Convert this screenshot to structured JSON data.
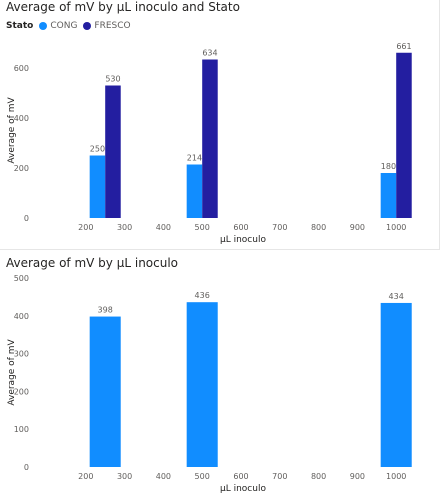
{
  "colors": {
    "cong": "#118dff",
    "fresco": "#231ea0",
    "axis_text": "#605e5c",
    "label_text": "#605e5c",
    "grid": "#e6e6e6"
  },
  "chart_data": [
    {
      "type": "bar",
      "title": "Average of mV by µL inoculo and Stato",
      "xlabel": "µL inoculo",
      "ylabel": "Average of mV",
      "legend_title": "Stato",
      "legend_placement": "top-left",
      "xlim": [
        100,
        1100
      ],
      "x_ticks": [
        200,
        300,
        400,
        500,
        600,
        700,
        800,
        900,
        1000
      ],
      "ylim": [
        0,
        700
      ],
      "y_ticks": [
        0,
        200,
        400,
        600
      ],
      "grid": false,
      "series": [
        {
          "name": "CONG",
          "x": [
            250,
            500,
            1000
          ],
          "values": [
            250,
            214,
            180
          ],
          "labels": [
            "250",
            "214",
            "180"
          ],
          "color": "#118dff"
        },
        {
          "name": "FRESCO",
          "x": [
            250,
            500,
            1000
          ],
          "values": [
            530,
            634,
            661
          ],
          "labels": [
            "530",
            "634",
            "661"
          ],
          "color": "#231ea0"
        }
      ]
    },
    {
      "type": "bar",
      "title": "Average of mV by µL inoculo",
      "xlabel": "µL inoculo",
      "ylabel": "Average of mV",
      "xlim": [
        100,
        1100
      ],
      "x_ticks": [
        200,
        300,
        400,
        500,
        600,
        700,
        800,
        900,
        1000
      ],
      "ylim": [
        0,
        500
      ],
      "y_ticks": [
        0,
        100,
        200,
        300,
        400,
        500
      ],
      "grid": false,
      "series": [
        {
          "x": [
            250,
            500,
            1000
          ],
          "values": [
            398,
            436,
            434
          ],
          "labels": [
            "398",
            "436",
            "434"
          ],
          "color": "#118dff"
        }
      ]
    }
  ]
}
